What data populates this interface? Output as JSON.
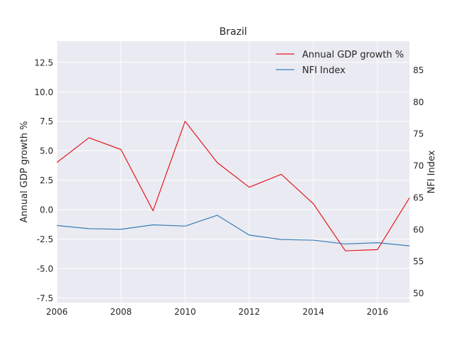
{
  "chart_data": {
    "type": "line",
    "title": "Brazil",
    "xlabel": "",
    "ylabel_left": "Annual GDP growth %",
    "ylabel_right": "NFI Index",
    "xlim": [
      2006,
      2017
    ],
    "ylim_left": [
      -7.9,
      14.3
    ],
    "ylim_right": [
      48.5,
      89.5
    ],
    "x_ticks": [
      2006,
      2008,
      2010,
      2012,
      2014,
      2016
    ],
    "y_ticks_left": [
      -7.5,
      -5.0,
      -2.5,
      0.0,
      2.5,
      5.0,
      7.5,
      10.0,
      12.5
    ],
    "y_ticks_right": [
      50,
      55,
      60,
      65,
      70,
      75,
      80,
      85
    ],
    "grid": true,
    "legend_position": "top-right",
    "x": [
      2006,
      2007,
      2008,
      2009,
      2010,
      2011,
      2012,
      2013,
      2014,
      2015,
      2016,
      2017
    ],
    "series": [
      {
        "name": "Annual GDP growth %",
        "axis": "left",
        "color": "#e41a1c",
        "values": [
          4.0,
          6.1,
          5.1,
          -0.1,
          7.5,
          4.0,
          1.9,
          3.0,
          0.5,
          -3.5,
          -3.4,
          1.0
        ]
      },
      {
        "name": "NFI Index",
        "axis": "right",
        "color": "#377eb8",
        "values": [
          60.6,
          60.1,
          60.0,
          60.7,
          60.5,
          62.2,
          59.1,
          58.4,
          58.3,
          57.7,
          57.9,
          57.4
        ]
      }
    ]
  }
}
